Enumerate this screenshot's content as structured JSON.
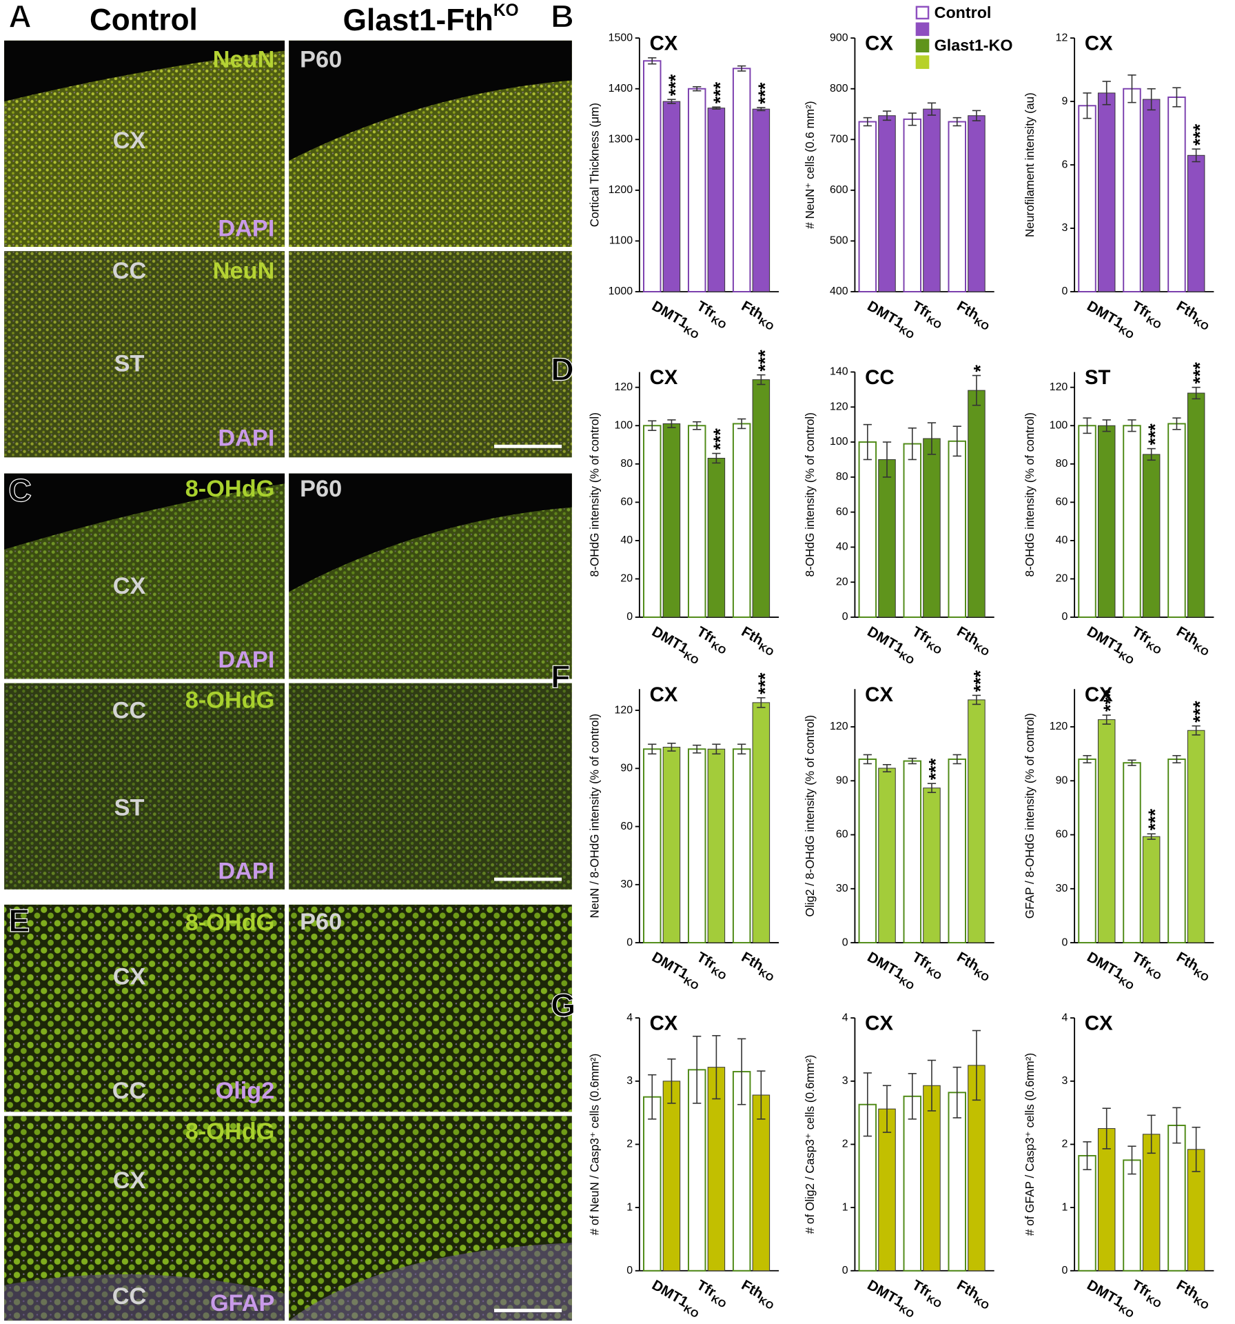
{
  "panel_labels": [
    "A",
    "B",
    "C",
    "D",
    "E",
    "F",
    "G"
  ],
  "column_headers": {
    "left": "Control",
    "right": "Glast1-Fth",
    "right_sup": "KO"
  },
  "image_labels": [
    {
      "text": "NeuN",
      "color": "#b5d334"
    },
    {
      "text": "CX",
      "color": "#d4d4d4"
    },
    {
      "text": "DAPI",
      "color": "#c99be9"
    },
    {
      "text": "P60",
      "color": "#d4d4d4"
    },
    {
      "text": "CC",
      "color": "#d4d4d4"
    },
    {
      "text": "NeuN",
      "color": "#b5d334"
    },
    {
      "text": "ST",
      "color": "#d4d4d4"
    },
    {
      "text": "DAPI",
      "color": "#c99be9"
    },
    {
      "text": "8-OHdG",
      "color": "#a9d12e"
    },
    {
      "text": "CX",
      "color": "#d4d4d4"
    },
    {
      "text": "DAPI",
      "color": "#c99be9"
    },
    {
      "text": "P60",
      "color": "#d4d4d4"
    },
    {
      "text": "CC",
      "color": "#d4d4d4"
    },
    {
      "text": "8-OHdG",
      "color": "#a9d12e"
    },
    {
      "text": "ST",
      "color": "#d4d4d4"
    },
    {
      "text": "DAPI",
      "color": "#c99be9"
    },
    {
      "text": "8-OHdG",
      "color": "#a9d12e"
    },
    {
      "text": "CX",
      "color": "#d4d4d4"
    },
    {
      "text": "CC",
      "color": "#d4d4d4"
    },
    {
      "text": "Olig2",
      "color": "#c99be9"
    },
    {
      "text": "P60",
      "color": "#d4d4d4"
    },
    {
      "text": "8-OHdG",
      "color": "#a9d12e"
    },
    {
      "text": "CX",
      "color": "#d4d4d4"
    },
    {
      "text": "CC",
      "color": "#d4d4d4"
    },
    {
      "text": "GFAP",
      "color": "#c99be9"
    }
  ],
  "legend": {
    "labels": [
      "Control",
      "Glast1-KO"
    ],
    "colors": [
      "#ffffff",
      "#8e4fc0",
      "#5f941c",
      "#b7d12a"
    ]
  },
  "chart_data": [
    {
      "type": "bar",
      "title": "CX",
      "y_label": "Cortical Thickness (μm)",
      "categories": [
        "DMT1",
        "Tfr",
        "Fth"
      ],
      "category_sups": [
        "KO",
        "KO",
        "KO"
      ],
      "ylim": [
        1000,
        1500
      ],
      "yticks": [
        1000,
        1100,
        1200,
        1300,
        1400,
        1500
      ],
      "series": [
        {
          "color": "#7b3fae",
          "hollow": true,
          "values": [
            1455,
            1400,
            1440
          ],
          "errors": [
            6,
            4,
            5
          ]
        },
        {
          "color": "#8e4fc0",
          "values": [
            1375,
            1362,
            1360
          ],
          "errors": [
            4,
            2,
            3
          ],
          "stars": [
            "***",
            "***",
            "***"
          ]
        }
      ]
    },
    {
      "type": "bar",
      "title": "CX",
      "y_label": "# NeuN⁺ cells (0.6 mm²)",
      "categories": [
        "DMT1",
        "Tfr",
        "Fth"
      ],
      "category_sups": [
        "KO",
        "KO",
        "KO"
      ],
      "ylim": [
        400,
        900
      ],
      "yticks": [
        400,
        500,
        600,
        700,
        800,
        900
      ],
      "series": [
        {
          "color": "#7b3fae",
          "hollow": true,
          "values": [
            735,
            740,
            735
          ],
          "errors": [
            8,
            12,
            8
          ]
        },
        {
          "color": "#8e4fc0",
          "values": [
            747,
            760,
            747
          ],
          "errors": [
            9,
            12,
            10
          ]
        }
      ]
    },
    {
      "type": "bar",
      "title": "CX",
      "y_label": "Neurofilament intensity (au)",
      "categories": [
        "DMT1",
        "Tfr",
        "Fth"
      ],
      "category_sups": [
        "KO",
        "KO",
        "KO"
      ],
      "ylim": [
        0,
        12
      ],
      "yticks": [
        0,
        3,
        6,
        9,
        12
      ],
      "series": [
        {
          "color": "#7b3fae",
          "hollow": true,
          "values": [
            8.8,
            9.6,
            9.2
          ],
          "errors": [
            0.6,
            0.65,
            0.45
          ]
        },
        {
          "color": "#8e4fc0",
          "values": [
            9.4,
            9.1,
            6.45
          ],
          "errors": [
            0.55,
            0.5,
            0.3
          ],
          "stars": [
            null,
            null,
            "***"
          ]
        }
      ]
    },
    {
      "type": "bar",
      "title": "CX",
      "y_label": "8-OHdG intensity (% of control)",
      "categories": [
        "DMT1",
        "Tfr",
        "Fth"
      ],
      "category_sups": [
        "KO",
        "KO",
        "KO"
      ],
      "ylim": [
        0,
        128
      ],
      "yticks": [
        0,
        20,
        40,
        60,
        80,
        100,
        120
      ],
      "series": [
        {
          "color": "#4f8a16",
          "hollow": true,
          "values": [
            100,
            100,
            101
          ],
          "errors": [
            2.5,
            2,
            2.5
          ]
        },
        {
          "color": "#5f941c",
          "values": [
            101,
            83,
            124
          ],
          "errors": [
            2,
            2.5,
            2.5
          ],
          "stars": [
            null,
            "***",
            "***"
          ]
        }
      ]
    },
    {
      "type": "bar",
      "title": "CC",
      "y_label": "8-OHdG intensity (% of control)",
      "categories": [
        "DMT1",
        "Tfr",
        "Fth"
      ],
      "category_sups": [
        "KO",
        "KO",
        "KO"
      ],
      "ylim": [
        0,
        140
      ],
      "yticks": [
        0,
        20,
        40,
        60,
        80,
        100,
        120,
        140
      ],
      "series": [
        {
          "color": "#4f8a16",
          "hollow": true,
          "values": [
            100,
            99,
            100.5
          ],
          "errors": [
            10,
            9,
            8.5
          ]
        },
        {
          "color": "#5f941c",
          "values": [
            90,
            102,
            129.5
          ],
          "errors": [
            10,
            9,
            8.5
          ],
          "stars": [
            null,
            null,
            "*"
          ]
        }
      ]
    },
    {
      "type": "bar",
      "title": "ST",
      "y_label": "8-OHdG intensity (% of control)",
      "categories": [
        "DMT1",
        "Tfr",
        "Fth"
      ],
      "category_sups": [
        "KO",
        "KO",
        "KO"
      ],
      "ylim": [
        0,
        128
      ],
      "yticks": [
        0,
        20,
        40,
        60,
        80,
        100,
        120
      ],
      "series": [
        {
          "color": "#4f8a16",
          "hollow": true,
          "values": [
            100,
            100,
            101
          ],
          "errors": [
            4,
            3,
            3
          ]
        },
        {
          "color": "#5f941c",
          "values": [
            100,
            85,
            117
          ],
          "errors": [
            3,
            3,
            3
          ],
          "stars": [
            null,
            "***",
            "***"
          ]
        }
      ]
    },
    {
      "type": "bar",
      "title": "CX",
      "y_label": "NeuN / 8-OHdG intensity (% of control)",
      "categories": [
        "DMT1",
        "Tfr",
        "Fth"
      ],
      "category_sups": [
        "KO",
        "KO",
        "KO"
      ],
      "ylim": [
        0,
        131
      ],
      "yticks": [
        0,
        30,
        60,
        90,
        120
      ],
      "series": [
        {
          "color": "#4f8a16",
          "hollow": true,
          "values": [
            100,
            100,
            100
          ],
          "errors": [
            2.5,
            2,
            2.5
          ]
        },
        {
          "color": "#a3cc3a",
          "values": [
            101,
            100,
            124
          ],
          "errors": [
            2,
            2.5,
            2.5
          ],
          "stars": [
            null,
            null,
            "***"
          ]
        }
      ]
    },
    {
      "type": "bar",
      "title": "CX",
      "y_label": "Olig2 / 8-OHdG intensity (% of control)",
      "categories": [
        "DMT1",
        "Tfr",
        "Fth"
      ],
      "category_sups": [
        "KO",
        "KO",
        "KO"
      ],
      "ylim": [
        0,
        141
      ],
      "yticks": [
        0,
        30,
        60,
        90,
        120
      ],
      "series": [
        {
          "color": "#4f8a16",
          "hollow": true,
          "values": [
            102,
            101,
            102
          ],
          "errors": [
            2.5,
            1.5,
            2.5
          ]
        },
        {
          "color": "#a3cc3a",
          "values": [
            97,
            86,
            135
          ],
          "errors": [
            2,
            2.5,
            2.5
          ],
          "stars": [
            null,
            "***",
            "***"
          ]
        }
      ]
    },
    {
      "type": "bar",
      "title": "CX",
      "y_label": "GFAP / 8-OHdG intensity (% of control)",
      "categories": [
        "DMT1",
        "Tfr",
        "Fth"
      ],
      "category_sups": [
        "KO",
        "KO",
        "KO"
      ],
      "ylim": [
        0,
        141
      ],
      "yticks": [
        0,
        30,
        60,
        90,
        120
      ],
      "series": [
        {
          "color": "#4f8a16",
          "hollow": true,
          "values": [
            102,
            100,
            102
          ],
          "errors": [
            2,
            1.5,
            2
          ]
        },
        {
          "color": "#a3cc3a",
          "values": [
            124,
            59,
            118
          ],
          "errors": [
            2.5,
            1.5,
            2.5
          ],
          "stars": [
            "***",
            "***",
            "***"
          ]
        }
      ]
    },
    {
      "type": "bar",
      "title": "CX",
      "y_label": "# of NeuN / Casp3⁺ cells (0.6mm²)",
      "categories": [
        "DMT1",
        "Tfr",
        "Fth"
      ],
      "category_sups": [
        "KO",
        "KO",
        "KO"
      ],
      "ylim": [
        0,
        4
      ],
      "yticks": [
        0,
        1,
        2,
        3,
        4
      ],
      "series": [
        {
          "color": "#4f8a16",
          "hollow": true,
          "values": [
            2.75,
            3.18,
            3.15
          ],
          "errors": [
            0.35,
            0.53,
            0.52
          ]
        },
        {
          "color": "#c2bf00",
          "values": [
            3.0,
            3.22,
            2.78
          ],
          "errors": [
            0.35,
            0.5,
            0.38
          ]
        }
      ]
    },
    {
      "type": "bar",
      "title": "CX",
      "y_label": "# of Olig2 / Casp3⁺ cells (0.6mm²)",
      "categories": [
        "DMT1",
        "Tfr",
        "Fth"
      ],
      "category_sups": [
        "KO",
        "KO",
        "KO"
      ],
      "ylim": [
        0,
        4
      ],
      "yticks": [
        0,
        1,
        2,
        3,
        4
      ],
      "series": [
        {
          "color": "#4f8a16",
          "hollow": true,
          "values": [
            2.63,
            2.76,
            2.82
          ],
          "errors": [
            0.5,
            0.36,
            0.4
          ]
        },
        {
          "color": "#c2bf00",
          "values": [
            2.56,
            2.93,
            3.25
          ],
          "errors": [
            0.37,
            0.4,
            0.55
          ]
        }
      ]
    },
    {
      "type": "bar",
      "title": "CX",
      "y_label": "# of GFAP / Casp3⁺ cells (0.6mm²)",
      "categories": [
        "DMT1",
        "Tfr",
        "Fth"
      ],
      "category_sups": [
        "KO",
        "KO",
        "KO"
      ],
      "ylim": [
        0,
        4
      ],
      "yticks": [
        0,
        1,
        2,
        3,
        4
      ],
      "series": [
        {
          "color": "#4f8a16",
          "hollow": true,
          "values": [
            1.82,
            1.75,
            2.3
          ],
          "errors": [
            0.22,
            0.22,
            0.28
          ]
        },
        {
          "color": "#c2bf00",
          "values": [
            2.25,
            2.16,
            1.92
          ],
          "errors": [
            0.32,
            0.3,
            0.35
          ]
        }
      ]
    }
  ]
}
